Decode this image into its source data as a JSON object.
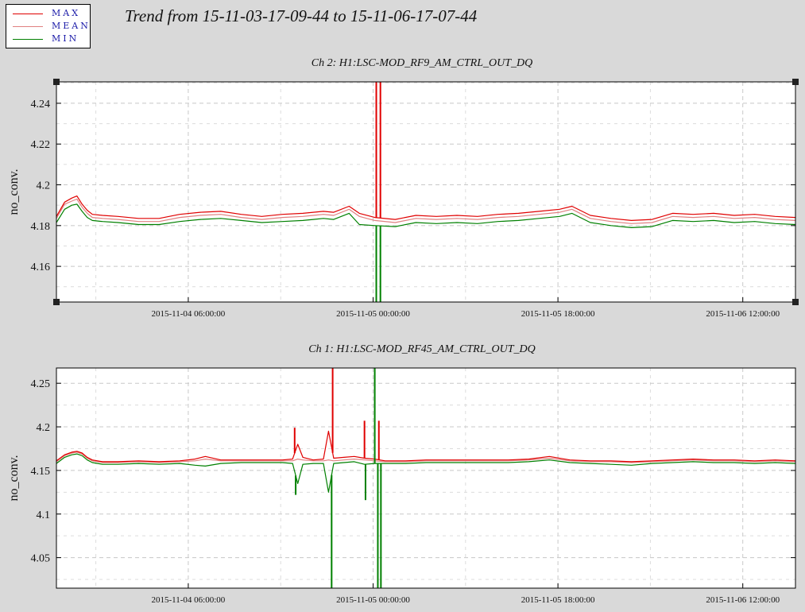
{
  "title": "Trend from 15-11-03-17-09-44 to 15-11-06-17-07-44",
  "legend": [
    {
      "label": "MAX",
      "color": "#e00000"
    },
    {
      "label": "MEAN",
      "color": "#e08080"
    },
    {
      "label": "MIN",
      "color": "#008000"
    }
  ],
  "colors": {
    "max": "#e00000",
    "mean": "#e08080",
    "min": "#008000",
    "background": "#d9d9d9"
  },
  "chart_data": [
    {
      "type": "line",
      "title": "Ch 2: H1:LSC-MOD_RF9_AM_CTRL_OUT_DQ",
      "ylabel": "no_conv.",
      "xlabel": "",
      "x_ticks": [
        "2015-11-04 06:00:00",
        "2015-11-05 00:00:00",
        "2015-11-05 18:00:00",
        "2015-11-06 12:00:00"
      ],
      "x_range_hours": [
        0,
        71.97
      ],
      "x_tick_hours": [
        12.84,
        30.84,
        48.84,
        66.84
      ],
      "ylim": [
        4.1425,
        4.2505
      ],
      "y_ticks": [
        4.16,
        4.18,
        4.2,
        4.22,
        4.24
      ],
      "y_tick_labels": [
        "4.16",
        "4.18",
        "4.2",
        "4.22",
        "4.24"
      ],
      "grid": true,
      "x": [
        0,
        0.8,
        1.5,
        2.0,
        2.5,
        3.0,
        3.5,
        4.5,
        6,
        8,
        10,
        12,
        14,
        16,
        18,
        20,
        22,
        24,
        25,
        26,
        27,
        28.5,
        29.5,
        31,
        33,
        35,
        37,
        39,
        41,
        43,
        45,
        47,
        49,
        50.2,
        52,
        54,
        56,
        58,
        60,
        62,
        64,
        66,
        68,
        70,
        71.97
      ],
      "series": [
        {
          "name": "MAX",
          "values": [
            4.1845,
            4.1915,
            4.1935,
            4.1945,
            4.1905,
            4.1875,
            4.1855,
            4.185,
            4.1845,
            4.1835,
            4.1835,
            4.1855,
            4.1865,
            4.187,
            4.1855,
            4.1845,
            4.1855,
            4.186,
            4.1865,
            4.187,
            4.1865,
            4.1895,
            4.186,
            4.184,
            4.183,
            4.185,
            4.1845,
            4.185,
            4.1845,
            4.1855,
            4.186,
            4.187,
            4.188,
            4.1895,
            4.185,
            4.1835,
            4.1825,
            4.183,
            4.186,
            4.1855,
            4.186,
            4.185,
            4.1855,
            4.1845,
            4.184
          ]
        },
        {
          "name": "MEAN",
          "values": [
            4.1835,
            4.1905,
            4.192,
            4.193,
            4.189,
            4.186,
            4.184,
            4.1835,
            4.183,
            4.182,
            4.182,
            4.184,
            4.185,
            4.1855,
            4.184,
            4.183,
            4.184,
            4.1845,
            4.185,
            4.1855,
            4.185,
            4.188,
            4.1845,
            4.1825,
            4.1815,
            4.1835,
            4.183,
            4.1835,
            4.183,
            4.184,
            4.1845,
            4.1855,
            4.1865,
            4.188,
            4.1835,
            4.182,
            4.181,
            4.1815,
            4.1845,
            4.184,
            4.1845,
            4.1835,
            4.184,
            4.183,
            4.1825
          ]
        },
        {
          "name": "MIN",
          "values": [
            4.1815,
            4.188,
            4.19,
            4.1905,
            4.187,
            4.184,
            4.1825,
            4.182,
            4.1815,
            4.1805,
            4.1805,
            4.182,
            4.183,
            4.1835,
            4.1825,
            4.1815,
            4.182,
            4.1825,
            4.183,
            4.1835,
            4.183,
            4.186,
            4.1805,
            4.18,
            4.1795,
            4.1815,
            4.181,
            4.1815,
            4.181,
            4.182,
            4.1825,
            4.1835,
            4.1845,
            4.186,
            4.1815,
            4.18,
            4.179,
            4.1795,
            4.1825,
            4.182,
            4.1825,
            4.1815,
            4.182,
            4.181,
            4.1805
          ]
        }
      ],
      "spikes": [
        {
          "series": "MAX",
          "x": 31.15,
          "y": 4.2505
        },
        {
          "series": "MAX",
          "x": 31.55,
          "y": 4.2505
        },
        {
          "series": "MIN",
          "x": 31.15,
          "y": 4.1425
        },
        {
          "series": "MIN",
          "x": 31.55,
          "y": 4.1425
        }
      ]
    },
    {
      "type": "line",
      "title": "Ch 1: H1:LSC-MOD_RF45_AM_CTRL_OUT_DQ",
      "ylabel": "no_conv.",
      "xlabel": "",
      "x_ticks": [
        "2015-11-04 06:00:00",
        "2015-11-05 00:00:00",
        "2015-11-05 18:00:00",
        "2015-11-06 12:00:00"
      ],
      "x_range_hours": [
        0,
        71.97
      ],
      "x_tick_hours": [
        12.84,
        30.84,
        48.84,
        66.84
      ],
      "ylim": [
        4.015,
        4.2675
      ],
      "y_ticks": [
        4.05,
        4.1,
        4.15,
        4.2,
        4.25
      ],
      "y_tick_labels": [
        "4.05",
        "4.1",
        "4.15",
        "4.2",
        "4.25"
      ],
      "grid": true,
      "x": [
        0,
        0.8,
        1.5,
        2.0,
        2.5,
        3.0,
        3.5,
        4.5,
        6,
        8,
        10,
        12,
        13.5,
        14.5,
        16,
        18,
        20,
        22,
        23,
        23.5,
        24,
        25,
        26,
        26.5,
        27,
        28,
        29,
        30,
        31,
        32,
        34,
        36,
        38,
        40,
        42,
        44,
        46,
        48,
        50,
        52,
        54,
        56,
        58,
        60,
        62,
        64,
        66,
        68,
        70,
        71.97
      ],
      "series": [
        {
          "name": "MAX",
          "values": [
            4.161,
            4.168,
            4.171,
            4.172,
            4.17,
            4.165,
            4.162,
            4.16,
            4.16,
            4.161,
            4.16,
            4.161,
            4.163,
            4.166,
            4.162,
            4.162,
            4.162,
            4.162,
            4.163,
            4.18,
            4.165,
            4.162,
            4.163,
            4.195,
            4.164,
            4.165,
            4.166,
            4.164,
            4.163,
            4.161,
            4.161,
            4.162,
            4.162,
            4.162,
            4.162,
            4.162,
            4.163,
            4.166,
            4.162,
            4.161,
            4.161,
            4.16,
            4.161,
            4.162,
            4.163,
            4.162,
            4.162,
            4.161,
            4.162,
            4.161
          ]
        },
        {
          "name": "MEAN",
          "values": [
            4.16,
            4.167,
            4.17,
            4.171,
            4.169,
            4.164,
            4.161,
            4.159,
            4.159,
            4.16,
            4.159,
            4.16,
            4.161,
            4.163,
            4.161,
            4.161,
            4.161,
            4.161,
            4.161,
            4.163,
            4.162,
            4.161,
            4.161,
            4.162,
            4.161,
            4.162,
            4.163,
            4.162,
            4.161,
            4.16,
            4.16,
            4.161,
            4.161,
            4.161,
            4.161,
            4.161,
            4.162,
            4.164,
            4.161,
            4.16,
            4.16,
            4.159,
            4.16,
            4.161,
            4.162,
            4.161,
            4.161,
            4.16,
            4.161,
            4.16
          ]
        },
        {
          "name": "MIN",
          "values": [
            4.158,
            4.165,
            4.168,
            4.169,
            4.167,
            4.162,
            4.159,
            4.157,
            4.157,
            4.158,
            4.157,
            4.158,
            4.156,
            4.155,
            4.158,
            4.159,
            4.159,
            4.159,
            4.158,
            4.135,
            4.157,
            4.158,
            4.158,
            4.125,
            4.158,
            4.159,
            4.16,
            4.157,
            4.158,
            4.158,
            4.158,
            4.159,
            4.159,
            4.159,
            4.159,
            4.159,
            4.16,
            4.162,
            4.159,
            4.158,
            4.157,
            4.156,
            4.158,
            4.159,
            4.16,
            4.159,
            4.159,
            4.158,
            4.159,
            4.158
          ]
        }
      ],
      "spikes": [
        {
          "series": "MAX",
          "x": 23.2,
          "y": 4.199
        },
        {
          "series": "MAX",
          "x": 26.9,
          "y": 4.2675
        },
        {
          "series": "MAX",
          "x": 30.0,
          "y": 4.207
        },
        {
          "series": "MIN",
          "x": 23.3,
          "y": 4.122
        },
        {
          "series": "MIN",
          "x": 26.8,
          "y": 4.015
        },
        {
          "series": "MIN",
          "x": 30.1,
          "y": 4.116
        },
        {
          "series": "MIN",
          "x": 31.0,
          "y": 4.2675
        },
        {
          "series": "MIN",
          "x": 31.3,
          "y": 4.015
        },
        {
          "series": "MIN",
          "x": 31.6,
          "y": 4.015
        },
        {
          "series": "MAX",
          "x": 31.4,
          "y": 4.207
        }
      ]
    }
  ]
}
